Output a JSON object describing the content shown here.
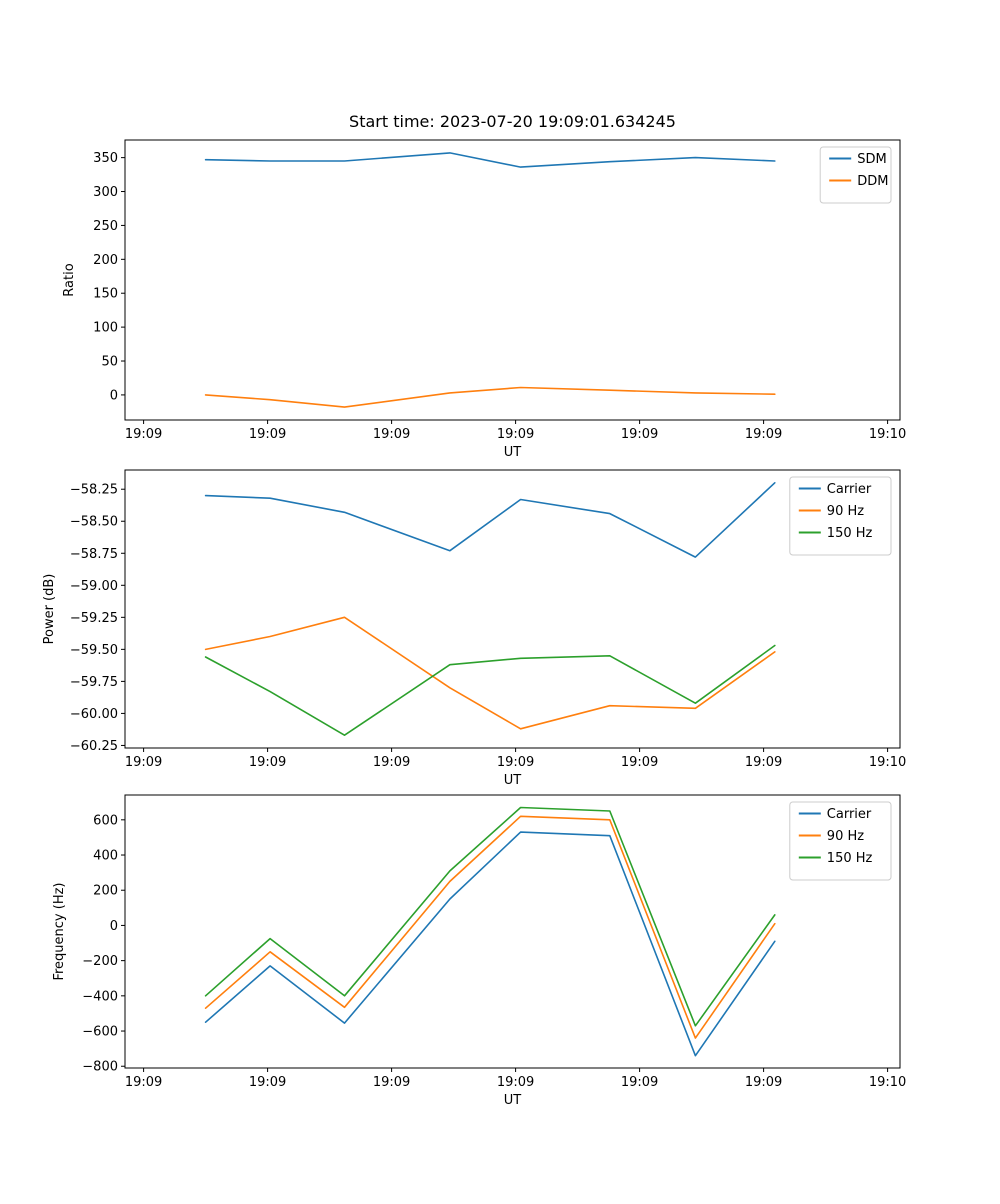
{
  "figure": {
    "background": "#ffffff",
    "accent_colors": {
      "blue": "#1f77b4",
      "orange": "#ff7f0e",
      "green": "#2ca02c"
    }
  },
  "chart_data": [
    {
      "type": "line",
      "title": "Start time: 2023-07-20 19:09:01.634245",
      "xlabel": "UT",
      "ylabel": "Ratio",
      "x": [
        5.0,
        10.2,
        16.2,
        24.7,
        30.4,
        37.6,
        44.5,
        50.9
      ],
      "series": [
        {
          "name": "SDM",
          "color": "#1f77b4",
          "values": [
            347,
            345,
            345,
            357,
            336,
            344,
            350,
            345
          ]
        },
        {
          "name": "DDM",
          "color": "#ff7f0e",
          "values": [
            0,
            -7,
            -18,
            3,
            11,
            7,
            3,
            1
          ]
        }
      ],
      "xlim": [
        -1.5,
        61
      ],
      "ylim": [
        -37,
        376
      ],
      "xticks": [
        0,
        10,
        20,
        30,
        40,
        50,
        60
      ],
      "xtick_labels": [
        "19:09",
        "19:09",
        "19:09",
        "19:09",
        "19:09",
        "19:09",
        "19:10"
      ],
      "yticks": [
        0,
        50,
        100,
        150,
        200,
        250,
        300,
        350
      ],
      "ytick_labels": [
        "0",
        "50",
        "100",
        "150",
        "200",
        "250",
        "300",
        "350"
      ],
      "grid": false,
      "legend_position": "top-right"
    },
    {
      "type": "line",
      "title": "",
      "xlabel": "UT",
      "ylabel": "Power (dB)",
      "x": [
        5.0,
        10.2,
        16.2,
        24.7,
        30.4,
        37.6,
        44.5,
        50.9
      ],
      "series": [
        {
          "name": "Carrier",
          "color": "#1f77b4",
          "values": [
            -58.3,
            -58.32,
            -58.43,
            -58.73,
            -58.33,
            -58.44,
            -58.78,
            -58.2
          ]
        },
        {
          "name": "90 Hz",
          "color": "#ff7f0e",
          "values": [
            -59.5,
            -59.4,
            -59.25,
            -59.8,
            -60.12,
            -59.94,
            -59.96,
            -59.52
          ]
        },
        {
          "name": "150 Hz",
          "color": "#2ca02c",
          "values": [
            -59.56,
            -59.83,
            -60.17,
            -59.62,
            -59.57,
            -59.55,
            -59.92,
            -59.47
          ]
        }
      ],
      "xlim": [
        -1.5,
        61
      ],
      "ylim": [
        -60.27,
        -58.1
      ],
      "xticks": [
        0,
        10,
        20,
        30,
        40,
        50,
        60
      ],
      "xtick_labels": [
        "19:09",
        "19:09",
        "19:09",
        "19:09",
        "19:09",
        "19:09",
        "19:10"
      ],
      "yticks": [
        -60.25,
        -60.0,
        -59.75,
        -59.5,
        -59.25,
        -59.0,
        -58.75,
        -58.5,
        -58.25
      ],
      "ytick_labels": [
        "−60.25",
        "−60.00",
        "−59.75",
        "−59.50",
        "−59.25",
        "−59.00",
        "−58.75",
        "−58.50",
        "−58.25"
      ],
      "grid": false,
      "legend_position": "top-right"
    },
    {
      "type": "line",
      "title": "",
      "xlabel": "UT",
      "ylabel": "Frequency (Hz)",
      "x": [
        5.0,
        10.2,
        16.2,
        24.7,
        30.4,
        37.6,
        44.5,
        50.9
      ],
      "series": [
        {
          "name": "Carrier",
          "color": "#1f77b4",
          "values": [
            -550,
            -230,
            -555,
            150,
            530,
            510,
            -740,
            -90
          ]
        },
        {
          "name": "90 Hz",
          "color": "#ff7f0e",
          "values": [
            -470,
            -150,
            -465,
            250,
            620,
            600,
            -640,
            10
          ]
        },
        {
          "name": "150 Hz",
          "color": "#2ca02c",
          "values": [
            -400,
            -75,
            -400,
            310,
            670,
            650,
            -570,
            60
          ]
        }
      ],
      "xlim": [
        -1.5,
        61
      ],
      "ylim": [
        -810,
        741
      ],
      "xticks": [
        0,
        10,
        20,
        30,
        40,
        50,
        60
      ],
      "xtick_labels": [
        "19:09",
        "19:09",
        "19:09",
        "19:09",
        "19:09",
        "19:09",
        "19:10"
      ],
      "yticks": [
        -800,
        -600,
        -400,
        -200,
        0,
        200,
        400,
        600
      ],
      "ytick_labels": [
        "−800",
        "−600",
        "−400",
        "−200",
        "0",
        "200",
        "400",
        "600"
      ],
      "grid": false,
      "legend_position": "top-right"
    }
  ]
}
